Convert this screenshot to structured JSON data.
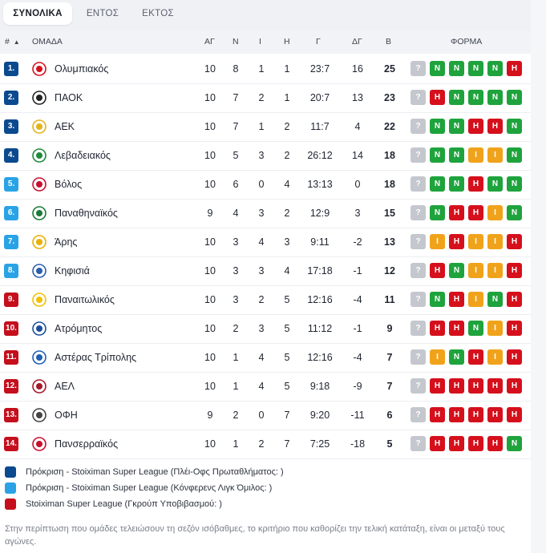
{
  "tabs": [
    {
      "label": "ΣΥΝΟΛΙΚΑ",
      "active": true
    },
    {
      "label": "ΕΝΤΟΣ",
      "active": false
    },
    {
      "label": "ΕΚΤΟΣ",
      "active": false
    }
  ],
  "columns": {
    "rank": "#",
    "team": "ΟΜΑΔΑ",
    "played": "ΑΓ",
    "wins": "Ν",
    "draws": "Ι",
    "losses": "Η",
    "goals": "Γ",
    "goal_diff": "ΔΓ",
    "points": "Β",
    "form": "ΦΟΡΜΑ"
  },
  "rows": [
    {
      "rank": "1.",
      "team": "Ολυμπιακός",
      "played": "10",
      "wins": "8",
      "draws": "1",
      "losses": "1",
      "goals": "23:7",
      "goal_diff": "16",
      "points": "25",
      "zone": "ucl",
      "form": [
        "?",
        "Ν",
        "Ν",
        "Ν",
        "Ν",
        "Η"
      ],
      "logo_color": "#d5101c"
    },
    {
      "rank": "2.",
      "team": "ΠΑΟΚ",
      "played": "10",
      "wins": "7",
      "draws": "2",
      "losses": "1",
      "goals": "20:7",
      "goal_diff": "13",
      "points": "23",
      "zone": "ucl",
      "form": [
        "?",
        "Η",
        "Ν",
        "Ν",
        "Ν",
        "Ν"
      ],
      "logo_color": "#222222"
    },
    {
      "rank": "3.",
      "team": "ΑΕΚ",
      "played": "10",
      "wins": "7",
      "draws": "1",
      "losses": "2",
      "goals": "11:7",
      "goal_diff": "4",
      "points": "22",
      "zone": "ucl",
      "form": [
        "?",
        "Ν",
        "Ν",
        "Η",
        "Η",
        "Ν"
      ],
      "logo_color": "#e3b21a"
    },
    {
      "rank": "4.",
      "team": "Λεβαδειακός",
      "played": "10",
      "wins": "5",
      "draws": "3",
      "losses": "2",
      "goals": "26:12",
      "goal_diff": "14",
      "points": "18",
      "zone": "ucl",
      "form": [
        "?",
        "Ν",
        "Ν",
        "Ι",
        "Ι",
        "Ν"
      ],
      "logo_color": "#1e8a3c"
    },
    {
      "rank": "5.",
      "team": "Βόλος",
      "played": "10",
      "wins": "6",
      "draws": "0",
      "losses": "4",
      "goals": "13:13",
      "goal_diff": "0",
      "points": "18",
      "zone": "conf",
      "form": [
        "?",
        "Ν",
        "Ν",
        "Η",
        "Ν",
        "Ν"
      ],
      "logo_color": "#c8102e"
    },
    {
      "rank": "6.",
      "team": "Παναθηναϊκός",
      "played": "9",
      "wins": "4",
      "draws": "3",
      "losses": "2",
      "goals": "12:9",
      "goal_diff": "3",
      "points": "15",
      "zone": "conf",
      "form": [
        "?",
        "Ν",
        "Η",
        "Η",
        "Ι",
        "Ν"
      ],
      "logo_color": "#1a7a3a"
    },
    {
      "rank": "7.",
      "team": "Άρης",
      "played": "10",
      "wins": "3",
      "draws": "4",
      "losses": "3",
      "goals": "9:11",
      "goal_diff": "-2",
      "points": "13",
      "zone": "conf",
      "form": [
        "?",
        "Ι",
        "Η",
        "Ι",
        "Ι",
        "Η"
      ],
      "logo_color": "#e8b000"
    },
    {
      "rank": "8.",
      "team": "Κηφισιά",
      "played": "10",
      "wins": "3",
      "draws": "3",
      "losses": "4",
      "goals": "17:18",
      "goal_diff": "-1",
      "points": "12",
      "zone": "conf",
      "form": [
        "?",
        "Η",
        "Ν",
        "Ι",
        "Ι",
        "Η"
      ],
      "logo_color": "#2a5fb0"
    },
    {
      "rank": "9.",
      "team": "Παναιτωλικός",
      "played": "10",
      "wins": "3",
      "draws": "2",
      "losses": "5",
      "goals": "12:16",
      "goal_diff": "-4",
      "points": "11",
      "zone": "rel",
      "form": [
        "?",
        "Ν",
        "Η",
        "Ι",
        "Ν",
        "Η"
      ],
      "logo_color": "#f0c000"
    },
    {
      "rank": "10.",
      "team": "Ατρόμητος",
      "played": "10",
      "wins": "2",
      "draws": "3",
      "losses": "5",
      "goals": "11:12",
      "goal_diff": "-1",
      "points": "9",
      "zone": "rel",
      "form": [
        "?",
        "Η",
        "Η",
        "Ν",
        "Ι",
        "Η"
      ],
      "logo_color": "#1a4fa0"
    },
    {
      "rank": "11.",
      "team": "Αστέρας Τρίπολης",
      "played": "10",
      "wins": "1",
      "draws": "4",
      "losses": "5",
      "goals": "12:16",
      "goal_diff": "-4",
      "points": "7",
      "zone": "rel",
      "form": [
        "?",
        "Ι",
        "Ν",
        "Η",
        "Ι",
        "Η"
      ],
      "logo_color": "#1f5fb5"
    },
    {
      "rank": "12.",
      "team": "ΑΕΛ",
      "played": "10",
      "wins": "1",
      "draws": "4",
      "losses": "5",
      "goals": "9:18",
      "goal_diff": "-9",
      "points": "7",
      "zone": "rel",
      "form": [
        "?",
        "Η",
        "Η",
        "Η",
        "Η",
        "Η"
      ],
      "logo_color": "#a5182a"
    },
    {
      "rank": "13.",
      "team": "ΟΦΗ",
      "played": "9",
      "wins": "2",
      "draws": "0",
      "losses": "7",
      "goals": "9:20",
      "goal_diff": "-11",
      "points": "6",
      "zone": "rel",
      "form": [
        "?",
        "Η",
        "Η",
        "Η",
        "Η",
        "Η"
      ],
      "logo_color": "#444444"
    },
    {
      "rank": "14.",
      "team": "Πανσερραϊκός",
      "played": "10",
      "wins": "1",
      "draws": "2",
      "losses": "7",
      "goals": "7:25",
      "goal_diff": "-18",
      "points": "5",
      "zone": "rel",
      "form": [
        "?",
        "Η",
        "Η",
        "Η",
        "Η",
        "Ν"
      ],
      "logo_color": "#c8102e"
    }
  ],
  "zones": {
    "ucl": "#0b4a8f",
    "conf": "#29a3e6",
    "rel": "#c50f1c"
  },
  "legend": [
    {
      "zone": "ucl",
      "text": "Πρόκριση - Stoiximan Super League (Πλέι-Οφς Πρωταθλήματος: )"
    },
    {
      "zone": "conf",
      "text": "Πρόκριση - Stoiximan Super League (Κόνφερενς Λιγκ Όμιλος: )"
    },
    {
      "zone": "rel",
      "text": "Stoiximan Super League (Γκρούπ Υποβιβασμού: )"
    }
  ],
  "note": "Στην περίπτωση που ομάδες τελειώσουν τη σεζόν ισόβαθμες, το κριτήριο που καθορίζει την τελική κατάταξη, είναι οι μεταξύ τους αγώνες.",
  "sort_indicator": "▲"
}
